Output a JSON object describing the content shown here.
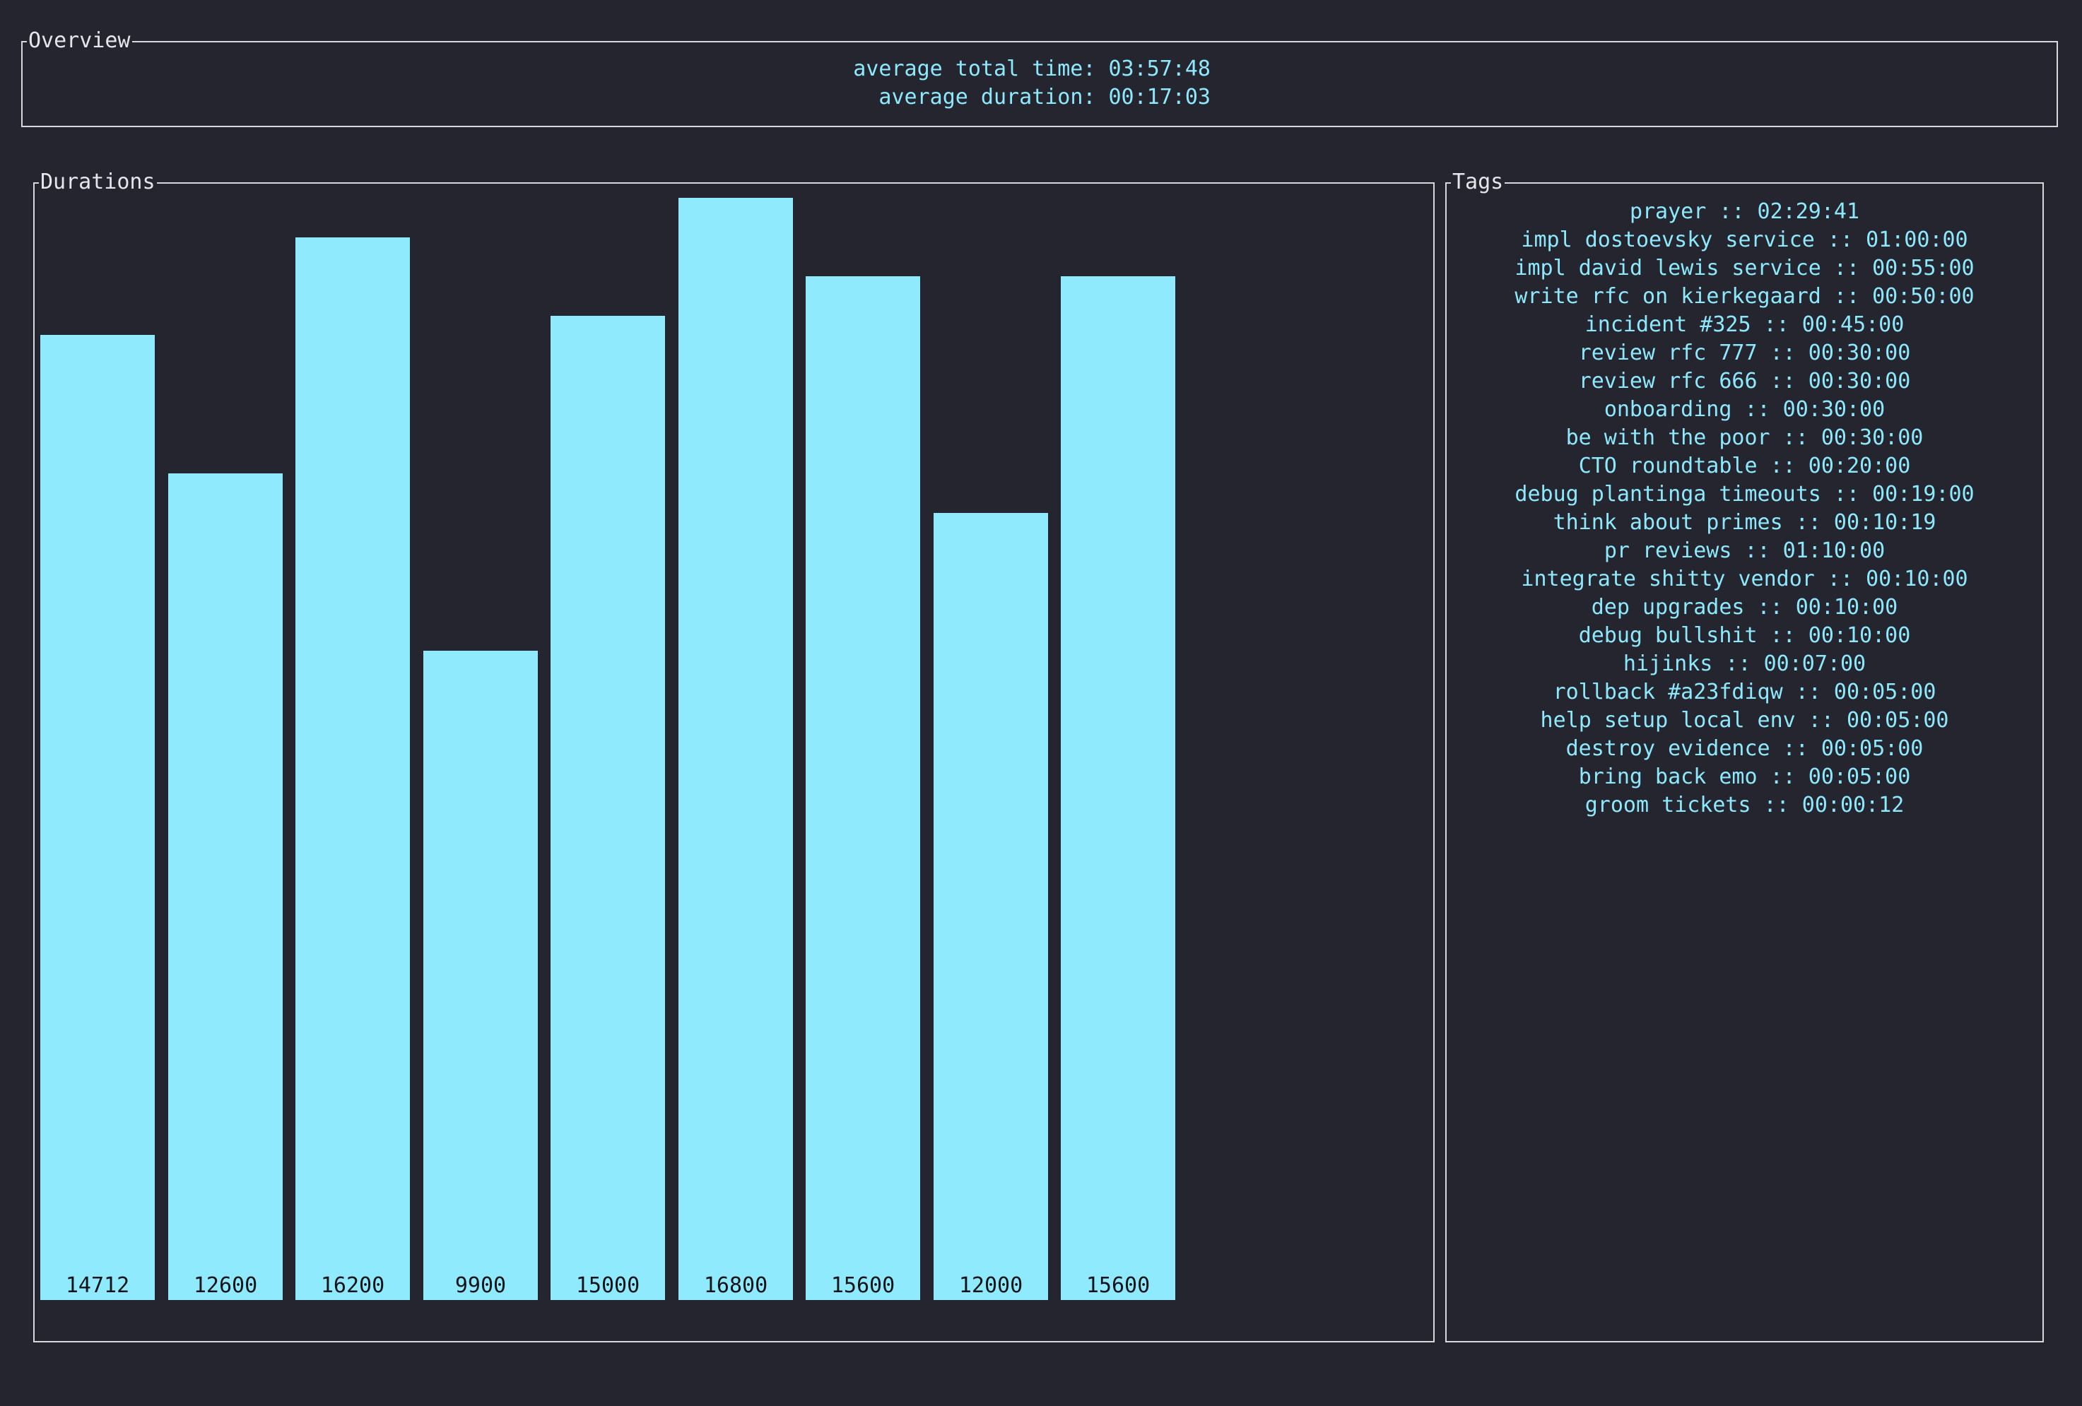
{
  "overview": {
    "title": "Overview",
    "average_total_time_line": "average total time: 03:57:48",
    "average_duration_line": "average duration: 00:17:03"
  },
  "durations": {
    "title": "Durations"
  },
  "chart_data": {
    "type": "bar",
    "values": [
      14712,
      12600,
      16200,
      9900,
      15000,
      16800,
      15600,
      12000,
      15600
    ],
    "data_labels": [
      "14712",
      "12600",
      "16200",
      "9900",
      "15000",
      "16800",
      "15600",
      "12000",
      "15600"
    ],
    "ylim": [
      0,
      16800
    ],
    "grid": false,
    "bar_color": "#8feafd",
    "label_color": "#101418"
  },
  "tags": {
    "title": "Tags",
    "items": [
      "prayer :: 02:29:41",
      "impl dostoevsky service :: 01:00:00",
      "impl david lewis service :: 00:55:00",
      "write rfc on kierkegaard :: 00:50:00",
      "incident #325 :: 00:45:00",
      "review rfc 777 :: 00:30:00",
      "review rfc 666 :: 00:30:00",
      "onboarding :: 00:30:00",
      "be with the poor :: 00:30:00",
      "CTO roundtable :: 00:20:00",
      "debug plantinga timeouts :: 00:19:00",
      "think about primes :: 00:10:19",
      "pr reviews :: 01:10:00",
      "integrate shitty vendor :: 00:10:00",
      "dep upgrades :: 00:10:00",
      "debug bullshit :: 00:10:00",
      "hijinks :: 00:07:00",
      "rollback #a23fdiqw :: 00:05:00",
      "help setup local env :: 00:05:00",
      "destroy evidence :: 00:05:00",
      "bring back emo :: 00:05:00",
      "groom tickets :: 00:00:12"
    ]
  },
  "theme": {
    "background": "#24252f",
    "border": "#d8d8dc",
    "accent": "#8ee8fc"
  }
}
